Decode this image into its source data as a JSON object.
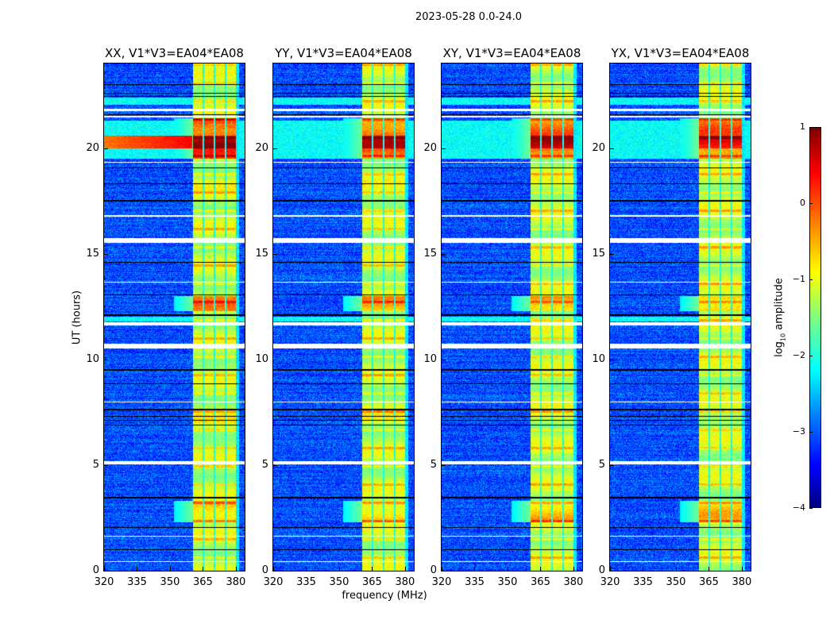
{
  "chart_data": {
    "type": "heatmap",
    "title": "2023-05-28 0.0-24.0",
    "xlabel": "frequency (MHz)",
    "ylabel": "UT (hours)",
    "xlim": [
      320,
      384
    ],
    "ylim": [
      0,
      24
    ],
    "xticks": [
      "320",
      "335",
      "350",
      "365",
      "380"
    ],
    "xtick_values": [
      320,
      335,
      350,
      365,
      380
    ],
    "yticks": [
      "0",
      "5",
      "10",
      "15",
      "20"
    ],
    "ytick_values": [
      0,
      5,
      10,
      15,
      20
    ],
    "colormap": "jet",
    "colorbar": {
      "label_prefix": "log",
      "label_sub": "10",
      "label_suffix": " amplitude",
      "range": [
        -4,
        1
      ],
      "ticks": [
        "1",
        "0",
        "−1",
        "−2",
        "−3",
        "−4"
      ],
      "tick_values": [
        1,
        0,
        -1,
        -2,
        -3,
        -4
      ]
    },
    "panels": [
      {
        "title": "XX, V1*V3=EA04*EA08",
        "seed": 11,
        "strong": 1.0
      },
      {
        "title": "YY, V1*V3=EA04*EA08",
        "seed": 23,
        "strong": 0.85
      },
      {
        "title": "XY, V1*V3=EA04*EA08",
        "seed": 37,
        "strong": 0.9
      },
      {
        "title": "YX, V1*V3=EA04*EA08",
        "seed": 53,
        "strong": 0.85
      }
    ],
    "features": {
      "background_level": -3.0,
      "rfi_band_mhz": [
        360.5,
        380
      ],
      "rfi_subband_gaps_mhz": [
        365.2,
        370.3,
        375.3
      ],
      "rfi_band_level": -1.2,
      "flagged_hours": [
        [
          21.75,
          21.85
        ],
        [
          21.45,
          21.52
        ],
        [
          19.3,
          19.36
        ],
        [
          16.75,
          16.82
        ],
        [
          15.52,
          15.72
        ],
        [
          13.62,
          13.68
        ],
        [
          11.62,
          11.74
        ],
        [
          10.52,
          10.76
        ],
        [
          7.95,
          8.0
        ],
        [
          5.02,
          5.2
        ],
        [
          1.6,
          1.66
        ],
        [
          0.4,
          0.44
        ]
      ],
      "dropout_hours": [
        23.0,
        22.6,
        22.45,
        21.58,
        19.05,
        18.3,
        17.5,
        14.6,
        13.05,
        12.1,
        9.5,
        8.85,
        7.62,
        7.3,
        7.12,
        6.9,
        3.45,
        2.05,
        1.0
      ],
      "hot_hours": [
        [
          19.5,
          21.4,
          0.6
        ],
        [
          20.0,
          20.6,
          1.0
        ],
        [
          12.3,
          13.0,
          0.4
        ],
        [
          2.3,
          3.3,
          0.3
        ],
        [
          17.3,
          18.5,
          0.05
        ],
        [
          7.0,
          7.6,
          0.1
        ]
      ],
      "broadband_cyan_hours": [
        [
          22.05,
          22.4
        ],
        [
          11.8,
          12.0
        ],
        [
          19.5,
          21.3
        ]
      ]
    }
  }
}
